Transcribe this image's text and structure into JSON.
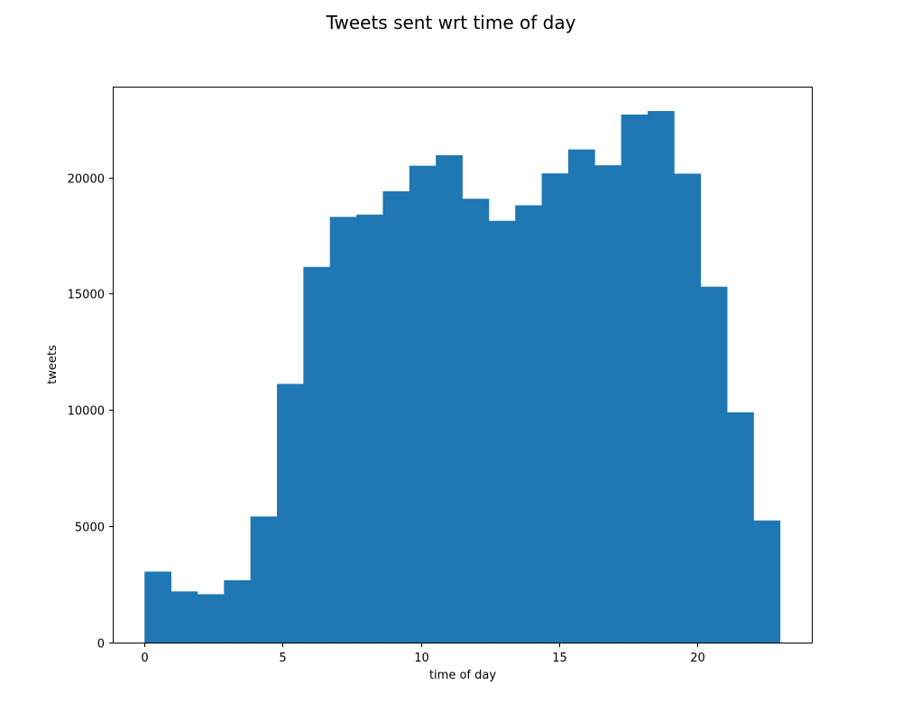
{
  "chart_data": {
    "type": "bar",
    "title": "Tweets sent wrt time of day",
    "xlabel": "time of day",
    "ylabel": "tweets",
    "xlim": [
      -1.15,
      24.15
    ],
    "ylim": [
      0,
      23900
    ],
    "x_ticks": [
      0,
      5,
      10,
      15,
      20
    ],
    "y_ticks": [
      0,
      5000,
      10000,
      15000,
      20000
    ],
    "bin_edges": [
      0,
      0.9583,
      1.9167,
      2.875,
      3.8333,
      4.7917,
      5.75,
      6.7083,
      7.6667,
      8.625,
      9.5833,
      10.5417,
      11.5,
      12.4583,
      13.4167,
      14.375,
      15.3333,
      16.2917,
      17.25,
      18.2083,
      19.1667,
      20.125,
      21.0833,
      22.0417,
      23
    ],
    "values": [
      3050,
      2200,
      2080,
      2680,
      5420,
      11120,
      16150,
      18300,
      18400,
      19400,
      20500,
      20950,
      19080,
      18130,
      18800,
      20170,
      21200,
      20520,
      22700,
      22850,
      20160,
      15300,
      9900,
      5250
    ],
    "bar_color": "#1f77b4",
    "grid": false
  }
}
